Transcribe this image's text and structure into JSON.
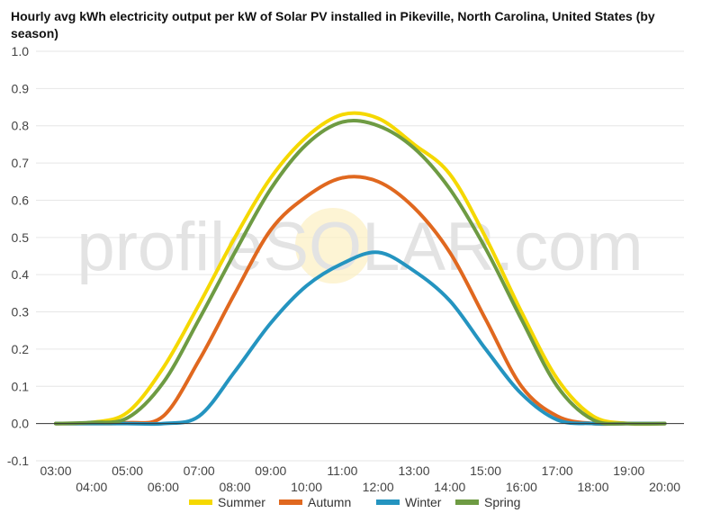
{
  "chart_data": {
    "type": "line",
    "title": "Hourly avg kWh electricity output per kW of Solar PV installed in Pikeville, North Carolina, United States (by season)",
    "x": [
      "03:00",
      "04:00",
      "05:00",
      "06:00",
      "07:00",
      "08:00",
      "09:00",
      "10:00",
      "11:00",
      "12:00",
      "13:00",
      "14:00",
      "15:00",
      "16:00",
      "17:00",
      "18:00",
      "19:00",
      "20:00"
    ],
    "ylim": [
      -0.1,
      1.0
    ],
    "yticks": [
      "1.0",
      "0.9",
      "0.8",
      "0.7",
      "0.6",
      "0.5",
      "0.4",
      "0.3",
      "0.2",
      "0.1",
      "0.0",
      "-0.1"
    ],
    "grid": true,
    "legend_position": "bottom",
    "series": [
      {
        "name": "Summer",
        "color": "#f5d800",
        "values": [
          0.0,
          0.003,
          0.03,
          0.15,
          0.32,
          0.5,
          0.66,
          0.77,
          0.83,
          0.82,
          0.75,
          0.67,
          0.5,
          0.3,
          0.12,
          0.02,
          0.0,
          0.0
        ]
      },
      {
        "name": "Autumn",
        "color": "#e0681f",
        "values": [
          0.0,
          0.0,
          0.002,
          0.02,
          0.17,
          0.35,
          0.52,
          0.61,
          0.66,
          0.65,
          0.58,
          0.46,
          0.28,
          0.1,
          0.02,
          0.0,
          0.0,
          0.0
        ]
      },
      {
        "name": "Winter",
        "color": "#2494c0",
        "values": [
          0.0,
          0.0,
          0.0,
          0.0,
          0.02,
          0.14,
          0.27,
          0.37,
          0.43,
          0.46,
          0.41,
          0.33,
          0.2,
          0.08,
          0.01,
          0.0,
          0.0,
          0.0
        ]
      },
      {
        "name": "Spring",
        "color": "#6e9b43",
        "values": [
          0.0,
          0.003,
          0.015,
          0.11,
          0.28,
          0.46,
          0.63,
          0.75,
          0.81,
          0.8,
          0.74,
          0.63,
          0.47,
          0.28,
          0.1,
          0.01,
          0.0,
          0.0
        ]
      }
    ]
  },
  "watermark": {
    "text": "profileSOLAR.com",
    "sun_color": "#fcefc2"
  }
}
